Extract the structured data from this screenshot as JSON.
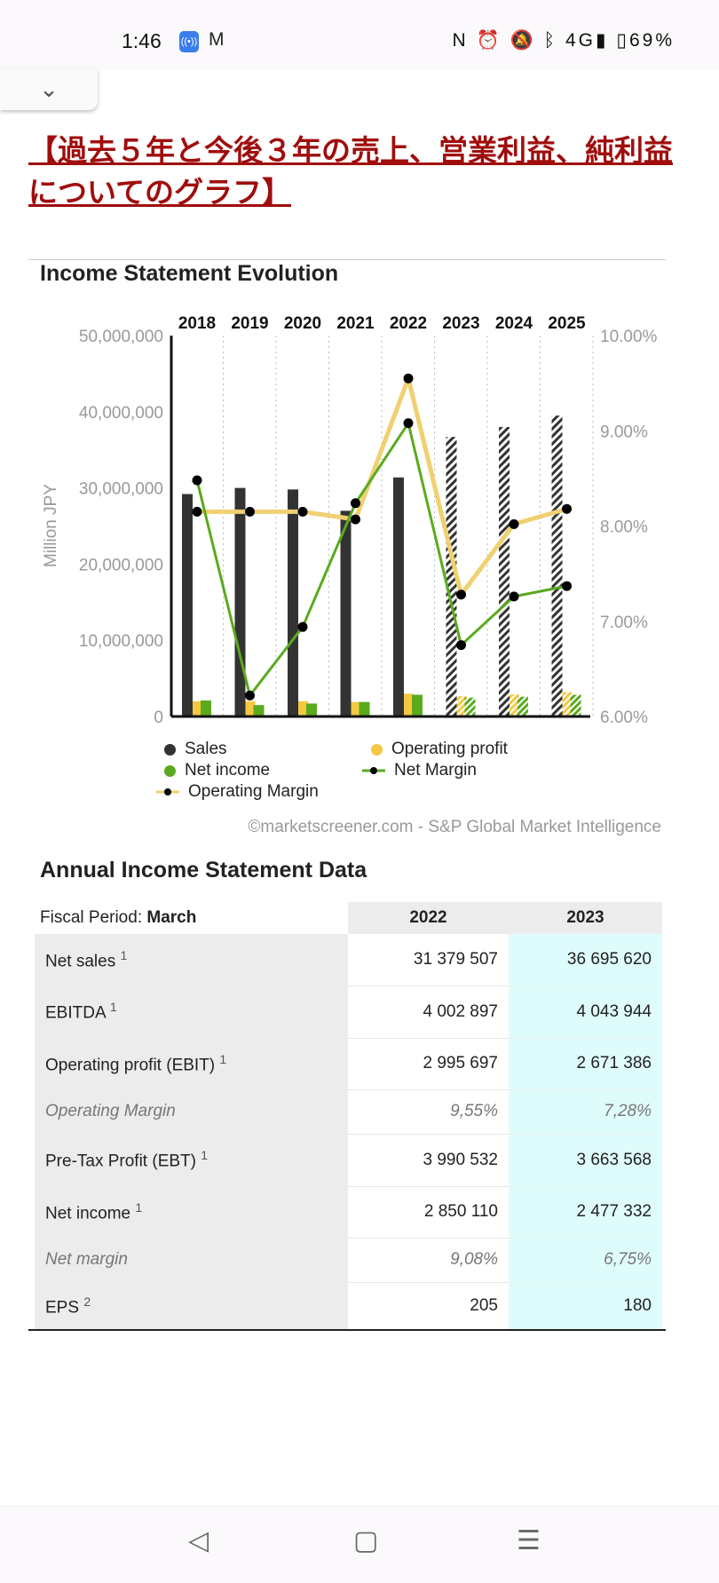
{
  "status_bar": {
    "time": "1:46",
    "battery": "69%",
    "icons": [
      "hotspot-icon",
      "gmail-icon",
      "nfc-icon",
      "alarm-icon",
      "mute-icon",
      "bluetooth-icon",
      "signal-4g-icon",
      "battery-icon"
    ]
  },
  "page": {
    "collapse_icon": "chevron-down-icon",
    "title": "【過去５年と今後３年の売上、営業利益、純利益についてのグラフ】",
    "title_color": "#a00d0d"
  },
  "chart_data": {
    "type": "bar",
    "title": "Income Statement Evolution",
    "ylabel": "Million JPY",
    "categories": [
      "2018",
      "2019",
      "2020",
      "2021",
      "2022",
      "2023",
      "2024",
      "2025"
    ],
    "forecast_from": "2023",
    "ylim": [
      0,
      50000000
    ],
    "y_ticks": [
      "0",
      "10,000,000",
      "20,000,000",
      "30,000,000",
      "40,000,000",
      "50,000,000"
    ],
    "y2lim": [
      6,
      10
    ],
    "y2_ticks": [
      "6.00%",
      "7.00%",
      "8.00%",
      "9.00%",
      "10.00%"
    ],
    "series": [
      {
        "name": "Sales",
        "type": "bar",
        "axis": "left",
        "color": "#333333",
        "values": [
          29200000,
          30000000,
          29800000,
          27000000,
          31379507,
          36695620,
          38000000,
          39500000
        ]
      },
      {
        "name": "Operating profit",
        "type": "bar",
        "axis": "left",
        "color": "#f5c842",
        "values": [
          2000000,
          2000000,
          2000000,
          1900000,
          2995697,
          2671386,
          2900000,
          3200000
        ]
      },
      {
        "name": "Net income",
        "type": "bar",
        "axis": "left",
        "color": "#5aaa1e",
        "values": [
          2100000,
          1500000,
          1700000,
          1900000,
          2850110,
          2477332,
          2600000,
          2850000
        ]
      },
      {
        "name": "Net Margin",
        "type": "line",
        "axis": "right",
        "color": "#5aaa1e",
        "values": [
          8.48,
          6.22,
          6.94,
          8.24,
          9.08,
          6.75,
          7.26,
          7.37
        ]
      },
      {
        "name": "Operating Margin",
        "type": "line",
        "axis": "right",
        "color": "#f0d070",
        "values": [
          8.15,
          8.15,
          8.15,
          8.07,
          9.55,
          7.28,
          8.02,
          8.18
        ]
      }
    ],
    "legend": [
      "Sales",
      "Operating profit",
      "Net income",
      "Net Margin",
      "Operating Margin"
    ],
    "legend_position": "bottom",
    "grid": "vertical dotted",
    "source": "©marketscreener.com - S&P Global Market Intelligence"
  },
  "table": {
    "title": "Annual Income Statement Data",
    "fiscal_label": "Fiscal Period: ",
    "fiscal_value": "March",
    "columns": [
      "2022",
      "2023"
    ],
    "rows": [
      {
        "label": "Net sales",
        "note": "1",
        "v": [
          "31 379 507",
          "36 695 620"
        ]
      },
      {
        "label": "EBITDA",
        "note": "1",
        "v": [
          "4 002 897",
          "4 043 944"
        ]
      },
      {
        "label": "Operating profit (EBIT)",
        "note": "1",
        "v": [
          "2 995 697",
          "2 671 386"
        ]
      },
      {
        "label": "Operating Margin",
        "note": "",
        "italic": true,
        "v": [
          "9,55%",
          "7,28%"
        ]
      },
      {
        "label": "Pre-Tax Profit (EBT)",
        "note": "1",
        "v": [
          "3 990 532",
          "3 663 568"
        ]
      },
      {
        "label": "Net income",
        "note": "1",
        "v": [
          "2 850 110",
          "2 477 332"
        ]
      },
      {
        "label": "Net margin",
        "note": "",
        "italic": true,
        "v": [
          "9,08%",
          "6,75%"
        ]
      },
      {
        "label": "EPS",
        "note": "2",
        "v": [
          "205",
          "180"
        ]
      }
    ]
  },
  "nav": {
    "back": "◁",
    "home": "▢",
    "recents": "☰"
  }
}
